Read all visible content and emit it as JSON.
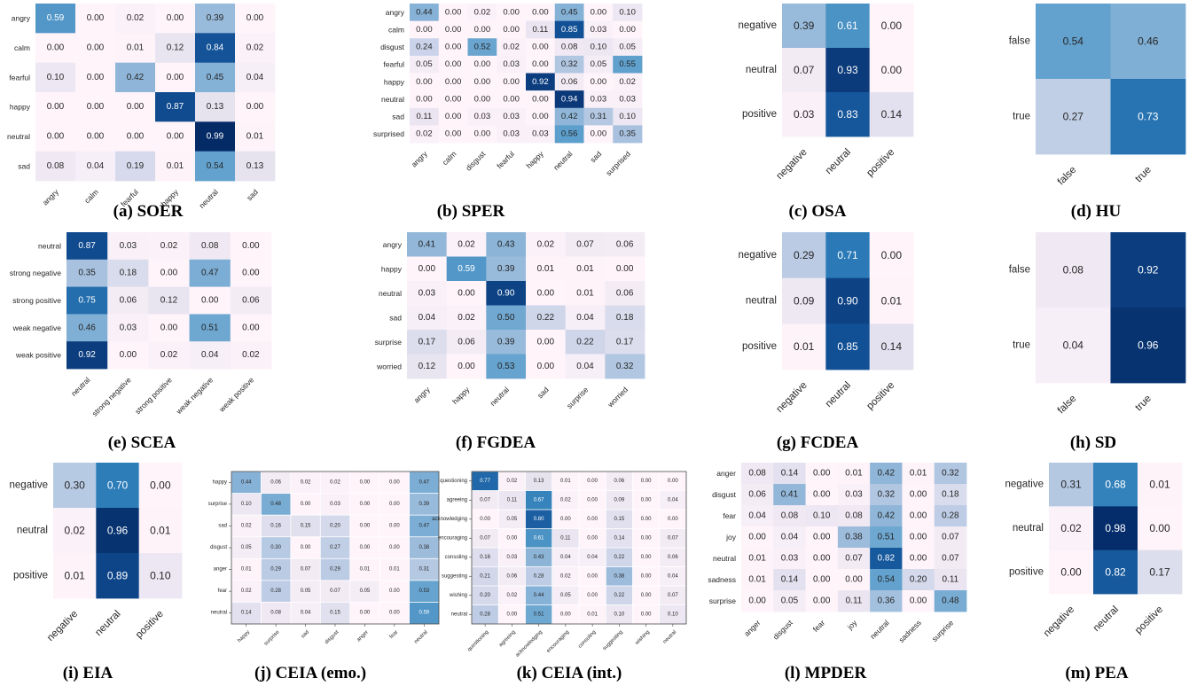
{
  "figure": {
    "captions": {
      "SOER": "(a) SOER",
      "SPER": "(b) SPER",
      "OSA": "(c) OSA",
      "HU": "(d) HU",
      "SCEA": "(e) SCEA",
      "FGDEA": "(f) FGDEA",
      "FCDEA": "(g) FCDEA",
      "SD": "(h) SD",
      "EIA": "(i) EIA",
      "CEIA_emo": "(j) CEIA (emo.)",
      "CEIA_int": "(k) CEIA (int.)",
      "MPDER": "(l) MPDER",
      "PEA": "(m) PEA"
    }
  },
  "chart_data": [
    {
      "id": "SOER",
      "type": "heatmap",
      "rows": [
        "angry",
        "calm",
        "fearful",
        "happy",
        "neutral",
        "sad"
      ],
      "cols": [
        "angry",
        "calm",
        "fearful",
        "happy",
        "neutral",
        "sad"
      ],
      "values": [
        [
          0.59,
          0.0,
          0.02,
          0.0,
          0.39,
          0.0
        ],
        [
          0.0,
          0.0,
          0.01,
          0.12,
          0.84,
          0.02
        ],
        [
          0.1,
          0.0,
          0.42,
          0.0,
          0.45,
          0.04
        ],
        [
          0.0,
          0.0,
          0.0,
          0.87,
          0.13,
          0.0
        ],
        [
          0.0,
          0.0,
          0.0,
          0.0,
          0.99,
          0.01
        ],
        [
          0.08,
          0.04,
          0.19,
          0.01,
          0.54,
          0.13
        ]
      ]
    },
    {
      "id": "SPER",
      "type": "heatmap",
      "rows": [
        "angry",
        "calm",
        "disgust",
        "fearful",
        "happy",
        "neutral",
        "sad",
        "surprised"
      ],
      "cols": [
        "angry",
        "calm",
        "disgust",
        "fearful",
        "happy",
        "neutral",
        "sad",
        "surprised"
      ],
      "values": [
        [
          0.44,
          0.0,
          0.02,
          0.0,
          0.0,
          0.45,
          0.0,
          0.1
        ],
        [
          0.0,
          0.0,
          0.0,
          0.0,
          0.11,
          0.85,
          0.03,
          0.0
        ],
        [
          0.24,
          0.0,
          0.52,
          0.02,
          0.0,
          0.08,
          0.1,
          0.05
        ],
        [
          0.05,
          0.0,
          0.0,
          0.03,
          0.0,
          0.32,
          0.05,
          0.55
        ],
        [
          0.0,
          0.0,
          0.0,
          0.0,
          0.92,
          0.06,
          0.0,
          0.02
        ],
        [
          0.0,
          0.0,
          0.0,
          0.0,
          0.0,
          0.94,
          0.03,
          0.03
        ],
        [
          0.11,
          0.0,
          0.03,
          0.03,
          0.0,
          0.42,
          0.31,
          0.1
        ],
        [
          0.02,
          0.0,
          0.0,
          0.03,
          0.03,
          0.56,
          0.0,
          0.35
        ]
      ]
    },
    {
      "id": "OSA",
      "type": "heatmap",
      "rows": [
        "negative",
        "neutral",
        "positive"
      ],
      "cols": [
        "negative",
        "neutral",
        "positive"
      ],
      "values": [
        [
          0.39,
          0.61,
          0.0
        ],
        [
          0.07,
          0.93,
          0.0
        ],
        [
          0.03,
          0.83,
          0.14
        ]
      ]
    },
    {
      "id": "HU",
      "type": "heatmap",
      "rows": [
        "false",
        "true"
      ],
      "cols": [
        "false",
        "true"
      ],
      "values": [
        [
          0.54,
          0.46
        ],
        [
          0.27,
          0.73
        ]
      ]
    },
    {
      "id": "SCEA",
      "type": "heatmap",
      "rows": [
        "neutral",
        "strong negative",
        "strong positive",
        "weak negative",
        "weak positive"
      ],
      "cols": [
        "neutral",
        "strong negative",
        "strong positive",
        "weak negative",
        "weak positive"
      ],
      "values": [
        [
          0.87,
          0.03,
          0.02,
          0.08,
          0.0
        ],
        [
          0.35,
          0.18,
          0.0,
          0.47,
          0.0
        ],
        [
          0.75,
          0.06,
          0.12,
          0.0,
          0.06
        ],
        [
          0.46,
          0.03,
          0.0,
          0.51,
          0.0
        ],
        [
          0.92,
          0.0,
          0.02,
          0.04,
          0.02
        ]
      ]
    },
    {
      "id": "FGDEA",
      "type": "heatmap",
      "rows": [
        "angry",
        "happy",
        "neutral",
        "sad",
        "surprise",
        "worried"
      ],
      "cols": [
        "angry",
        "happy",
        "neutral",
        "sad",
        "surprise",
        "worried"
      ],
      "values": [
        [
          0.41,
          0.02,
          0.43,
          0.02,
          0.07,
          0.06
        ],
        [
          0.0,
          0.59,
          0.39,
          0.01,
          0.01,
          0.0
        ],
        [
          0.03,
          0.0,
          0.9,
          0.0,
          0.01,
          0.06
        ],
        [
          0.04,
          0.02,
          0.5,
          0.22,
          0.04,
          0.18
        ],
        [
          0.17,
          0.06,
          0.39,
          0.0,
          0.22,
          0.17
        ],
        [
          0.12,
          0.0,
          0.53,
          0.0,
          0.04,
          0.32
        ]
      ]
    },
    {
      "id": "FCDEA",
      "type": "heatmap",
      "rows": [
        "negative",
        "neutral",
        "positive"
      ],
      "cols": [
        "negative",
        "neutral",
        "positive"
      ],
      "values": [
        [
          0.29,
          0.71,
          0.0
        ],
        [
          0.09,
          0.9,
          0.01
        ],
        [
          0.01,
          0.85,
          0.14
        ]
      ]
    },
    {
      "id": "SD",
      "type": "heatmap",
      "rows": [
        "false",
        "true"
      ],
      "cols": [
        "false",
        "true"
      ],
      "values": [
        [
          0.08,
          0.92
        ],
        [
          0.04,
          0.96
        ]
      ]
    },
    {
      "id": "EIA",
      "type": "heatmap",
      "rows": [
        "negative",
        "neutral",
        "positive"
      ],
      "cols": [
        "negative",
        "neutral",
        "positive"
      ],
      "values": [
        [
          0.3,
          0.7,
          0.0
        ],
        [
          0.02,
          0.96,
          0.01
        ],
        [
          0.01,
          0.89,
          0.1
        ]
      ]
    },
    {
      "id": "CEIA_emo",
      "type": "heatmap",
      "rows": [
        "happy",
        "surprise",
        "sad",
        "disgust",
        "anger",
        "fear",
        "neutral"
      ],
      "cols": [
        "happy",
        "surprise",
        "sad",
        "disgust",
        "anger",
        "fear",
        "neutral"
      ],
      "values": [
        [
          0.44,
          0.06,
          0.02,
          0.02,
          0.0,
          0.0,
          0.47
        ],
        [
          0.1,
          0.48,
          0.0,
          0.03,
          0.0,
          0.0,
          0.39
        ],
        [
          0.02,
          0.16,
          0.15,
          0.2,
          0.0,
          0.0,
          0.47
        ],
        [
          0.05,
          0.3,
          0.0,
          0.27,
          0.0,
          0.0,
          0.38
        ],
        [
          0.01,
          0.29,
          0.07,
          0.29,
          0.01,
          0.01,
          0.31
        ],
        [
          0.02,
          0.28,
          0.05,
          0.07,
          0.05,
          0.0,
          0.53
        ],
        [
          0.14,
          0.08,
          0.04,
          0.15,
          0.0,
          0.0,
          0.59
        ]
      ]
    },
    {
      "id": "CEIA_int",
      "type": "heatmap",
      "rows": [
        "questioning",
        "agreeing",
        "acknowledging",
        "encouraging",
        "consoling",
        "suggesting",
        "wishing",
        "neutral"
      ],
      "cols": [
        "questioning",
        "agreeing",
        "acknowledging",
        "encouraging",
        "consoling",
        "suggesting",
        "wishing",
        "neutral"
      ],
      "values": [
        [
          0.77,
          0.02,
          0.13,
          0.01,
          0.0,
          0.06,
          0.0,
          0.0
        ],
        [
          0.07,
          0.11,
          0.67,
          0.02,
          0.0,
          0.09,
          0.0,
          0.04
        ],
        [
          0.0,
          0.05,
          0.8,
          0.0,
          0.0,
          0.15,
          0.0,
          0.0
        ],
        [
          0.07,
          0.0,
          0.61,
          0.11,
          0.0,
          0.14,
          0.0,
          0.07
        ],
        [
          0.16,
          0.03,
          0.43,
          0.04,
          0.04,
          0.22,
          0.0,
          0.06
        ],
        [
          0.21,
          0.06,
          0.28,
          0.02,
          0.0,
          0.38,
          0.0,
          0.04
        ],
        [
          0.2,
          0.02,
          0.44,
          0.05,
          0.0,
          0.22,
          0.0,
          0.07
        ],
        [
          0.28,
          0.0,
          0.51,
          0.0,
          0.01,
          0.1,
          0.0,
          0.1
        ]
      ]
    },
    {
      "id": "MPDER",
      "type": "heatmap",
      "rows": [
        "anger",
        "disgust",
        "fear",
        "joy",
        "neutral",
        "sadness",
        "surprise"
      ],
      "cols": [
        "anger",
        "disgust",
        "fear",
        "joy",
        "neutral",
        "sadness",
        "surprise"
      ],
      "values": [
        [
          0.08,
          0.14,
          0.0,
          0.01,
          0.42,
          0.01,
          0.32
        ],
        [
          0.06,
          0.41,
          0.0,
          0.03,
          0.32,
          0.0,
          0.18
        ],
        [
          0.04,
          0.08,
          0.1,
          0.08,
          0.42,
          0.0,
          0.28
        ],
        [
          0.0,
          0.04,
          0.0,
          0.38,
          0.51,
          0.0,
          0.07
        ],
        [
          0.01,
          0.03,
          0.0,
          0.07,
          0.82,
          0.0,
          0.07
        ],
        [
          0.01,
          0.14,
          0.0,
          0.0,
          0.54,
          0.2,
          0.11
        ],
        [
          0.0,
          0.05,
          0.0,
          0.11,
          0.36,
          0.0,
          0.48
        ]
      ]
    },
    {
      "id": "PEA",
      "type": "heatmap",
      "rows": [
        "negative",
        "neutral",
        "positive"
      ],
      "cols": [
        "negative",
        "neutral",
        "positive"
      ],
      "values": [
        [
          0.31,
          0.68,
          0.01
        ],
        [
          0.02,
          0.98,
          0.0
        ],
        [
          0.0,
          0.82,
          0.17
        ]
      ]
    }
  ]
}
